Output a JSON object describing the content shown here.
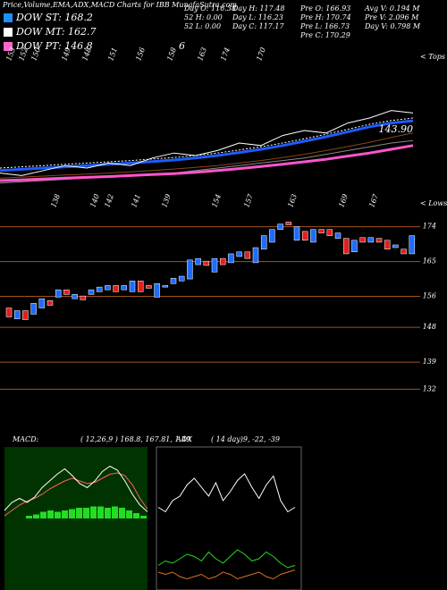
{
  "header": {
    "title": "Price,Volume,EMA,ADX,MACD Charts for IBB MunafaSutra.com",
    "legend": [
      {
        "label": "DOW ST: 168.2",
        "color": "#1e90ff"
      },
      {
        "label": "DOW MT: 162.7",
        "color": "#ffffff"
      },
      {
        "label": "DOW PT: 146.8",
        "color": "#ff66cc"
      }
    ],
    "legend_extra": "6",
    "stats": [
      [
        "Day O: 116.38",
        "52 H: 0.00",
        "52 L: 0.00"
      ],
      [
        "Day H: 117.48",
        "Day L: 116.23",
        "Day C: 117.17"
      ],
      [
        "Pre O: 166.93",
        "Pre H: 170.74",
        "Pre L: 166.73",
        "Pre C: 170.29"
      ],
      [
        "Avg V: 0.194 M",
        "Pre V: 2.096 M",
        "Day V: 0.798 M"
      ]
    ]
  },
  "chart_data": [
    {
      "type": "line",
      "tops_label": "< Tops",
      "tops": [
        "153",
        "152",
        "150",
        "149",
        "148",
        "151",
        "156",
        "158",
        "163",
        "174",
        "170"
      ],
      "lows_label": "< Lows",
      "lows": [
        "138",
        "140",
        "142",
        "141",
        "139",
        "154",
        "157",
        "163",
        "169",
        "167"
      ],
      "price_label": {
        "value": 143.9,
        "label": "143.90"
      },
      "ylim": [
        110,
        160
      ],
      "series": [
        {
          "color": "#888888",
          "width": 1,
          "values": [
            119,
            119.5,
            120,
            120.5,
            121,
            121.5,
            122,
            122.5,
            123,
            124,
            125,
            126,
            127,
            128,
            129,
            130.5,
            132,
            133.5,
            135,
            136
          ]
        },
        {
          "color": "#ff55cc",
          "width": 3,
          "values": [
            120,
            120.3,
            120.6,
            121,
            121.3,
            121.6,
            122,
            122.4,
            122.8,
            123.3,
            124,
            124.8,
            125.6,
            126.5,
            127.5,
            128.5,
            129.8,
            131,
            132.5,
            134
          ]
        },
        {
          "color": "#8b4513",
          "width": 1,
          "values": [
            121,
            121.4,
            121.8,
            122.2,
            122.6,
            123,
            123.5,
            124,
            124.6,
            125.3,
            126,
            127,
            128,
            129.2,
            130.5,
            132,
            133.6,
            135.3,
            137.2,
            139
          ]
        },
        {
          "color": "#1e5cff",
          "width": 3,
          "values": [
            124,
            124.5,
            125,
            125.5,
            126,
            126.5,
            127,
            127.6,
            128.2,
            129,
            130,
            131.2,
            132.5,
            134,
            135.7,
            137.5,
            139.5,
            141.5,
            143,
            143.9
          ]
        },
        {
          "color": "#ffffff",
          "width": 1,
          "dash": true,
          "values": [
            125,
            125.5,
            126,
            126.5,
            127,
            127.5,
            128,
            128.6,
            129.2,
            130,
            131,
            132.2,
            133.5,
            135,
            136.7,
            138.5,
            140.5,
            142.5,
            144,
            145
          ]
        },
        {
          "color": "#ffffff",
          "width": 1,
          "values": [
            123,
            122,
            124,
            126,
            125,
            127,
            126,
            129,
            131,
            130,
            132,
            135,
            134,
            138,
            140,
            139,
            143,
            145,
            148,
            147
          ]
        }
      ]
    },
    {
      "type": "candlestick",
      "up_color": "#1e6cff",
      "down_color": "#e02020",
      "grid_color": "#a0521d",
      "ylim": [
        124,
        176
      ],
      "yticks": [
        174,
        165,
        156,
        148,
        139,
        132
      ],
      "open": [
        153,
        150.2,
        152.3,
        151.4,
        153,
        154.9,
        155.8,
        157.7,
        155.4,
        156.1,
        156.5,
        157.2,
        157.7,
        158.8,
        157.7,
        157.2,
        160,
        158.8,
        155.8,
        158.4,
        159.3,
        160,
        160.5,
        164.2,
        165.1,
        162.3,
        165.8,
        164.7,
        166.3,
        167.5,
        164.7,
        168.2,
        170,
        173.3,
        175.2,
        170.5,
        172.8,
        170,
        173.3,
        173.3,
        171,
        171,
        167.5,
        171.2,
        170,
        171,
        170.5,
        168.6,
        168.2,
        167
      ],
      "close": [
        150.7,
        152.3,
        150,
        154.2,
        155.4,
        153.7,
        157.7,
        156.5,
        156.5,
        155.1,
        157.7,
        158.4,
        158.8,
        157.2,
        158.8,
        160,
        157.2,
        158.1,
        159.3,
        158.8,
        160.7,
        161.2,
        165.4,
        165.8,
        164,
        165.8,
        164.2,
        167,
        167.5,
        165.8,
        168.6,
        171.7,
        173.3,
        174.7,
        174.5,
        174,
        170.5,
        173.3,
        172.4,
        171.7,
        172.4,
        167,
        170.5,
        170,
        171.2,
        170,
        168.2,
        169.3,
        167,
        171.7
      ]
    },
    {
      "type": "macd",
      "label": "MACD:",
      "params": "( 12,26,9 ) 168.8, 167.81, 1.49",
      "ylim": [
        0,
        10
      ],
      "hist_color": "#22dd22",
      "histogram": [
        4.5,
        4.8,
        5,
        5.2,
        5.3,
        5.5,
        5.6,
        5.5,
        5.6,
        5.7,
        5.8,
        5.8,
        5.9,
        5.9,
        5.8,
        5.9,
        5.8,
        5.6,
        5.4,
        5.2
      ],
      "series": [
        {
          "color": "#ff6060",
          "values": [
            5.2,
            5.6,
            6,
            6.3,
            6.5,
            6.8,
            7.2,
            7.5,
            7.8,
            8,
            7.8,
            7.6,
            7.7,
            8,
            8.3,
            8.4,
            8.2,
            7.5,
            6.5,
            5.7
          ]
        },
        {
          "color": "#ffffff",
          "values": [
            5.6,
            6.2,
            6.5,
            6.2,
            6.6,
            7.3,
            7.8,
            8.3,
            8.7,
            8.2,
            7.6,
            7.3,
            7.8,
            8.5,
            8.9,
            8.6,
            7.8,
            6.8,
            6,
            5.5
          ]
        }
      ]
    },
    {
      "type": "adx",
      "label": "ADX",
      "params": "( 14 day)9, -22, -39",
      "ylim": [
        0,
        60
      ],
      "series": [
        {
          "color": "#ffffff",
          "values": [
            35,
            33,
            38,
            40,
            45,
            48,
            44,
            40,
            46,
            38,
            42,
            47,
            50,
            44,
            39,
            45,
            49,
            38,
            33,
            35
          ]
        },
        {
          "color": "#22dd22",
          "values": [
            9,
            11,
            10,
            12,
            14,
            13,
            11,
            15,
            12,
            10,
            13,
            16,
            14,
            11,
            12,
            15,
            13,
            10,
            8,
            9
          ]
        },
        {
          "color": "#e07020",
          "values": [
            6,
            5,
            6,
            4,
            3,
            4,
            5,
            3,
            4,
            6,
            5,
            3,
            4,
            5,
            6,
            4,
            3,
            5,
            6,
            7
          ]
        }
      ]
    }
  ]
}
